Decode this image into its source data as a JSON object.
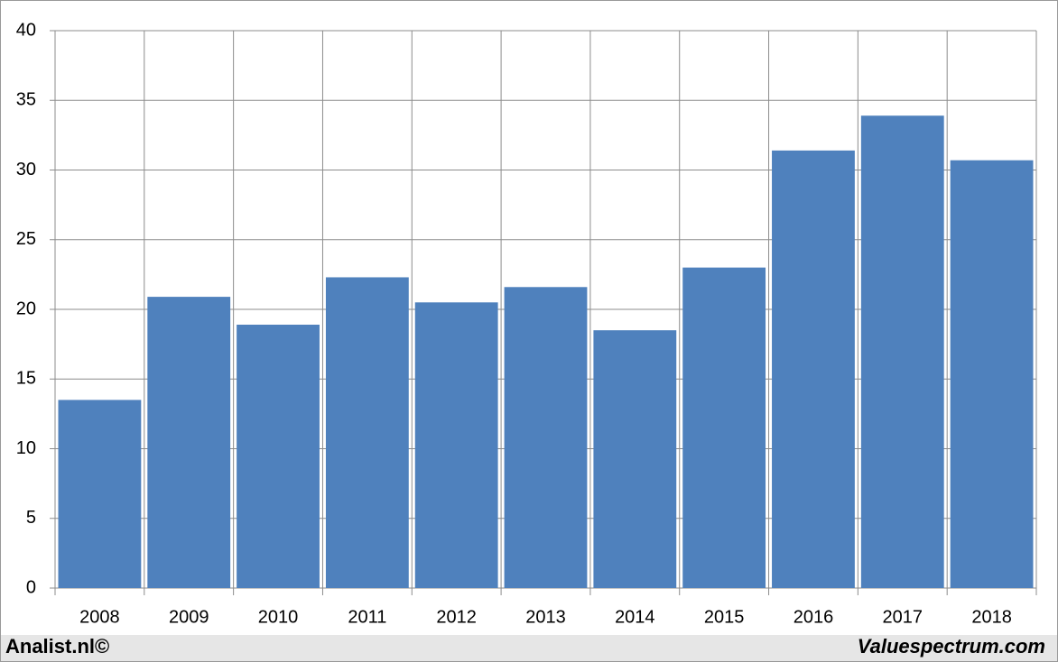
{
  "chart_data": {
    "type": "bar",
    "categories": [
      "2008",
      "2009",
      "2010",
      "2011",
      "2012",
      "2013",
      "2014",
      "2015",
      "2016",
      "2017",
      "2018"
    ],
    "values": [
      13.5,
      20.9,
      18.9,
      22.3,
      20.5,
      21.6,
      18.5,
      23.0,
      31.4,
      33.9,
      30.7
    ],
    "color": "#4f81bd",
    "ylim": [
      0,
      40
    ],
    "yticks": [
      0,
      5,
      10,
      15,
      20,
      25,
      30,
      35,
      40
    ],
    "grid": true
  },
  "footer": {
    "left": "Analist.nl©",
    "right": "Valuespectrum.com"
  }
}
